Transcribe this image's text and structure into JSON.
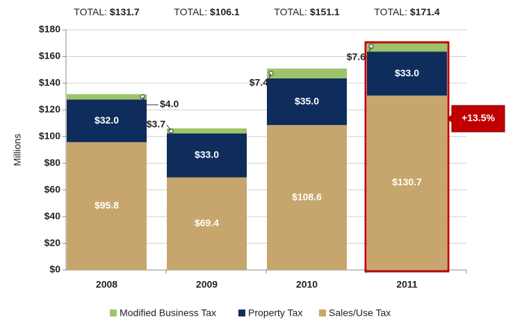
{
  "chart_data": {
    "type": "stacked_bar",
    "categories": [
      "2008",
      "2009",
      "2010",
      "2011"
    ],
    "series": [
      {
        "name": "Modified Business Tax",
        "color": "#9dc46b",
        "values": [
          4.0,
          3.7,
          7.4,
          7.6
        ],
        "value_labels": [
          "$4.0",
          "$3.7",
          "$7.4",
          "$7.6"
        ]
      },
      {
        "name": "Property Tax",
        "color": "#0e2d5c",
        "values": [
          32.0,
          33.0,
          35.0,
          33.0
        ],
        "value_labels": [
          "$32.0",
          "$33.0",
          "$35.0",
          "$33.0"
        ]
      },
      {
        "name": "Sales/Use Tax",
        "color": "#c6a66c",
        "values": [
          95.8,
          69.4,
          108.6,
          130.7
        ],
        "value_labels": [
          "$95.8",
          "$69.4",
          "$108.6",
          "$130.7"
        ]
      }
    ],
    "total_label": "TOTAL:",
    "totals": [
      131.7,
      106.1,
      151.1,
      171.4
    ],
    "total_value_labels": [
      "$131.7",
      "$106.1",
      "$151.1",
      "$171.4"
    ],
    "ylabel": "Millions",
    "ylim": [
      0,
      180
    ],
    "yticks": [
      {
        "value": 0,
        "label": "$0"
      },
      {
        "value": 20,
        "label": "$20"
      },
      {
        "value": 40,
        "label": "$40"
      },
      {
        "value": 60,
        "label": "$60"
      },
      {
        "value": 80,
        "label": "$80"
      },
      {
        "value": 100,
        "label": "$100"
      },
      {
        "value": 120,
        "label": "$120"
      },
      {
        "value": 140,
        "label": "$140"
      },
      {
        "value": 160,
        "label": "$160"
      },
      {
        "value": 180,
        "label": "$180"
      }
    ],
    "grid": true,
    "annotation": "+13.5%",
    "highlight_color": "#c00000"
  }
}
